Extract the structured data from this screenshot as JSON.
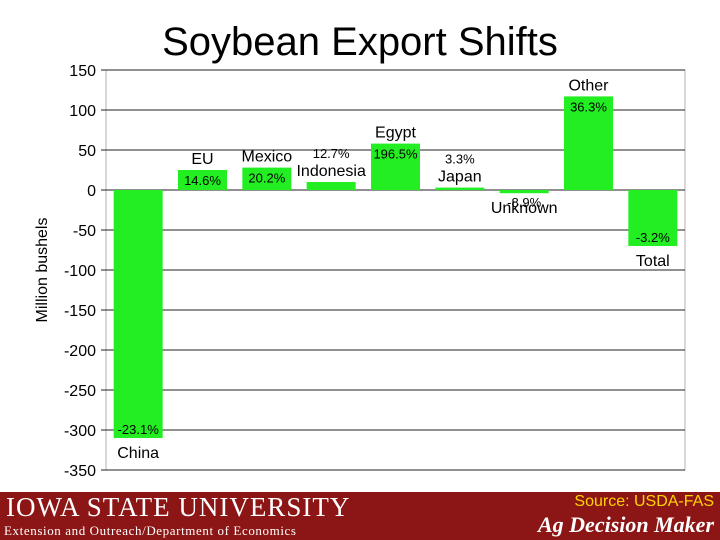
{
  "chart_data": {
    "type": "bar",
    "title": "Soybean Export Shifts",
    "ylabel": "Million bushels",
    "ylim": [
      -350,
      150
    ],
    "yticks": [
      "150",
      "100",
      "50",
      "0",
      "-50",
      "-100",
      "-150",
      "-200",
      "-250",
      "-300",
      "-350"
    ],
    "grid": true,
    "bar_color": "#22ee22",
    "categories": [
      "China",
      "EU",
      "Mexico",
      "Indonesia",
      "Egypt",
      "Japan",
      "Unknown",
      "Other",
      "Total"
    ],
    "values": [
      -310,
      25,
      28,
      10,
      58,
      3,
      -4,
      117,
      -70
    ],
    "data_labels": [
      "-23.1%",
      "14.6%",
      "20.2%",
      "12.7%",
      "196.5%",
      "3.3%",
      "-8.9%",
      "36.3%",
      "-3.2%"
    ]
  },
  "footer": {
    "university": "IOWA STATE UNIVERSITY",
    "department": "Extension and Outreach/Department of Economics",
    "source": "Source: USDA-FAS",
    "brand": "Ag Decision Maker"
  }
}
